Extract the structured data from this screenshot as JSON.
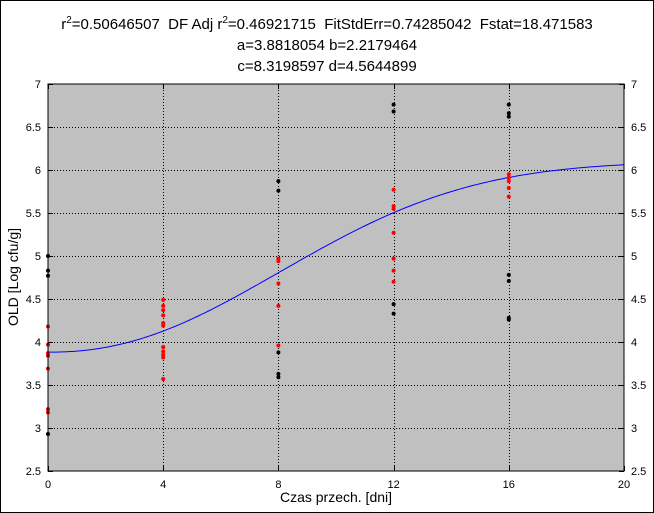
{
  "stats": {
    "r2": "0.50646507",
    "df_adj_r2": "0.46921715",
    "fit_std_err": "0.74285042",
    "fstat": "18.471583",
    "line2": "a=3.8818054 b=2.2179464",
    "line3": "c=8.3198597 d=4.5644899"
  },
  "chart_data": {
    "type": "scatter",
    "xlabel": "Czas przech. [dni]",
    "ylabel": "OLD [Log cfu/g]",
    "xlim": [
      0,
      20
    ],
    "ylim": [
      2.5,
      7
    ],
    "x_ticks": [
      "0",
      "4",
      "8",
      "12",
      "16",
      "20"
    ],
    "y_ticks": [
      "2.5",
      "3",
      "3.5",
      "4",
      "4.5",
      "5",
      "5.5",
      "6",
      "6.5",
      "7"
    ],
    "grid": true,
    "plot_background": "#c0c0c0",
    "fit_color": "#0000ff",
    "fit_params": {
      "a": 3.8818054,
      "b": 2.2179464,
      "c": 8.3198597,
      "d": 4.5644899
    },
    "series": [
      {
        "color": "#000000",
        "points": [
          [
            0,
            5.0
          ],
          [
            0,
            4.83
          ],
          [
            0,
            4.77
          ],
          [
            0,
            2.93
          ],
          [
            8,
            5.87
          ],
          [
            8,
            5.76
          ],
          [
            8,
            3.88
          ],
          [
            8,
            3.63
          ],
          [
            8,
            3.59
          ],
          [
            12,
            6.76
          ],
          [
            12,
            6.68
          ],
          [
            12,
            4.44
          ],
          [
            12,
            4.33
          ],
          [
            16,
            6.76
          ],
          [
            16,
            6.66
          ],
          [
            16,
            6.62
          ],
          [
            16,
            4.78
          ],
          [
            16,
            4.71
          ],
          [
            16,
            4.28
          ],
          [
            16,
            4.26
          ]
        ]
      },
      {
        "color": "#ff0000",
        "points": [
          [
            0,
            4.18
          ],
          [
            0,
            3.97
          ],
          [
            0,
            3.87
          ],
          [
            0,
            3.84
          ],
          [
            0,
            3.69
          ],
          [
            0,
            3.22
          ],
          [
            0,
            3.18
          ],
          [
            4,
            4.49
          ],
          [
            4,
            4.42
          ],
          [
            4,
            4.37
          ],
          [
            4,
            4.31
          ],
          [
            4,
            4.22
          ],
          [
            4,
            4.19
          ],
          [
            4,
            3.94
          ],
          [
            4,
            3.89
          ],
          [
            4,
            3.85
          ],
          [
            4,
            3.82
          ],
          [
            4,
            3.57
          ],
          [
            8,
            4.97
          ],
          [
            8,
            4.94
          ],
          [
            8,
            4.68
          ],
          [
            8,
            4.42
          ],
          [
            8,
            3.96
          ],
          [
            12,
            5.77
          ],
          [
            12,
            5.58
          ],
          [
            12,
            5.55
          ],
          [
            12,
            5.27
          ],
          [
            12,
            4.97
          ],
          [
            12,
            4.83
          ],
          [
            12,
            4.7
          ],
          [
            16,
            5.95
          ],
          [
            16,
            5.91
          ],
          [
            16,
            5.87
          ],
          [
            16,
            5.79
          ],
          [
            16,
            5.69
          ]
        ]
      }
    ]
  }
}
